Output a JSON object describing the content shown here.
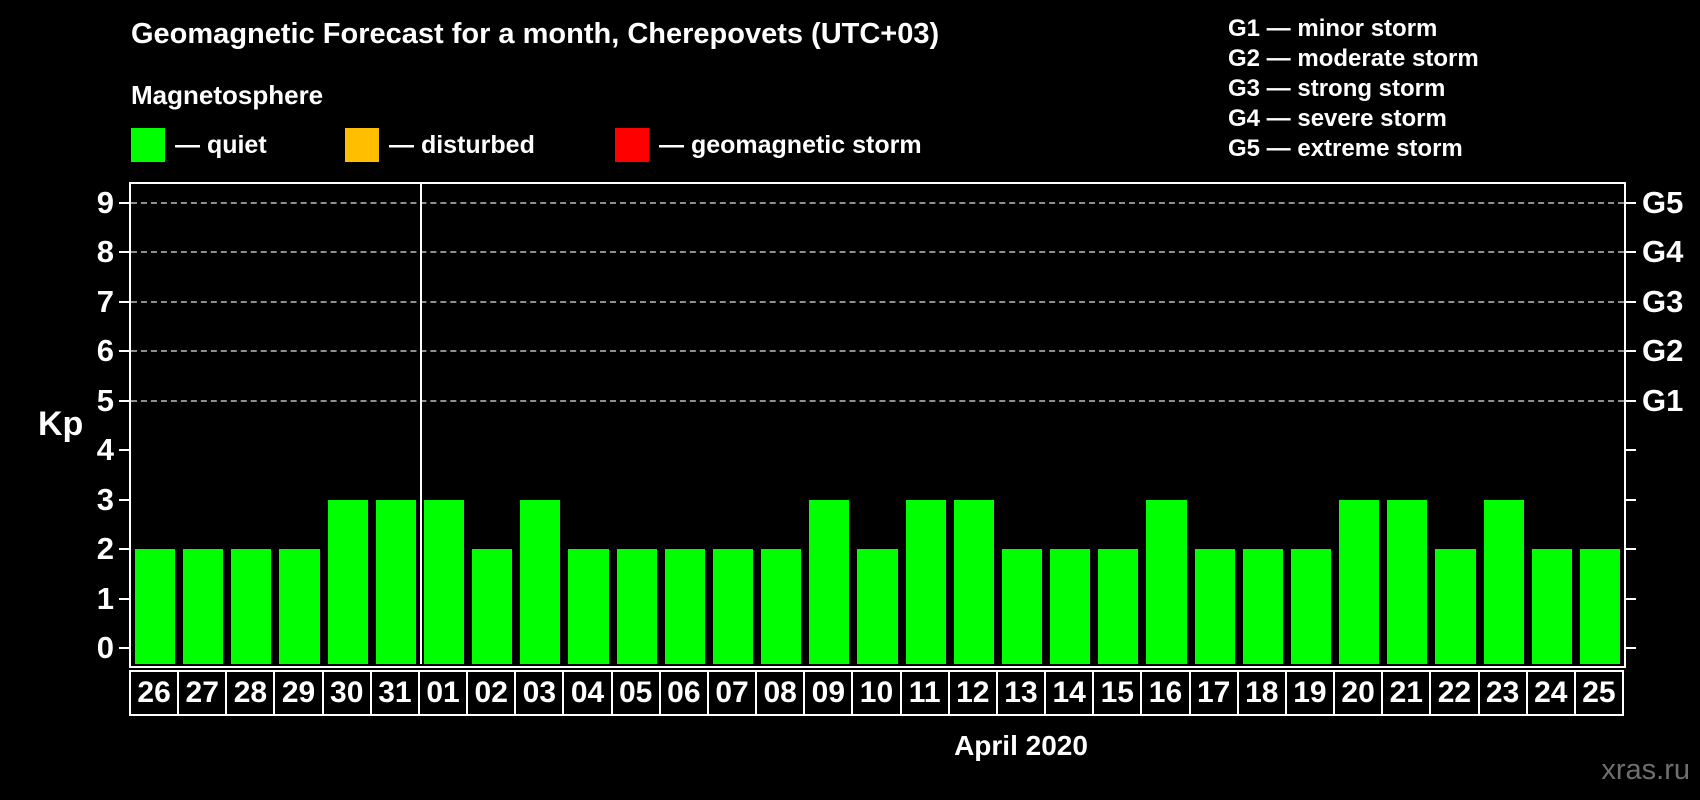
{
  "page": {
    "background": "#000000",
    "watermark": "xras.ru"
  },
  "header": {
    "title": "Geomagnetic Forecast for a month, Cherepovets (UTC+03)",
    "subtitle": "Magnetosphere"
  },
  "legend": {
    "items": [
      {
        "name": "quiet",
        "label": "— quiet",
        "color": "#00ff00"
      },
      {
        "name": "disturbed",
        "label": "— disturbed",
        "color": "#ffbe00"
      },
      {
        "name": "geomagnetic-storm",
        "label": "— geomagnetic storm",
        "color": "#ff0000"
      }
    ]
  },
  "storm_legend": {
    "items": [
      "G1 — minor storm",
      "G2 — moderate storm",
      "G3 — strong storm",
      "G4 — severe storm",
      "G5 — extreme storm"
    ]
  },
  "chart_data": {
    "type": "bar",
    "title": "Geomagnetic Forecast for a month, Cherepovets (UTC+03)",
    "categories": [
      "26",
      "27",
      "28",
      "29",
      "30",
      "31",
      "01",
      "02",
      "03",
      "04",
      "05",
      "06",
      "07",
      "08",
      "09",
      "10",
      "11",
      "12",
      "13",
      "14",
      "15",
      "16",
      "17",
      "18",
      "19",
      "20",
      "21",
      "22",
      "23",
      "24",
      "25"
    ],
    "values": [
      2,
      2,
      2,
      2,
      3,
      3,
      3,
      2,
      3,
      2,
      2,
      2,
      2,
      2,
      3,
      2,
      3,
      3,
      2,
      2,
      2,
      3,
      2,
      2,
      2,
      3,
      3,
      2,
      3,
      2,
      2
    ],
    "bar_color": "#00ff00",
    "status_of_all_bars": "quiet",
    "xlabel": "April 2020",
    "ylabel": "Kp",
    "ylim": [
      0,
      9
    ],
    "yticks": [
      0,
      1,
      2,
      3,
      4,
      5,
      6,
      7,
      8,
      9
    ],
    "gridlines_at": [
      5,
      6,
      7,
      8,
      9
    ],
    "grid": "dashed horizontal at storm levels only",
    "right_axis_labels": [
      {
        "kp": 5,
        "label": "G1"
      },
      {
        "kp": 6,
        "label": "G2"
      },
      {
        "kp": 7,
        "label": "G3"
      },
      {
        "kp": 8,
        "label": "G4"
      },
      {
        "kp": 9,
        "label": "G5"
      }
    ],
    "month_divider_after_index": 5,
    "legend_position": "top-left"
  }
}
